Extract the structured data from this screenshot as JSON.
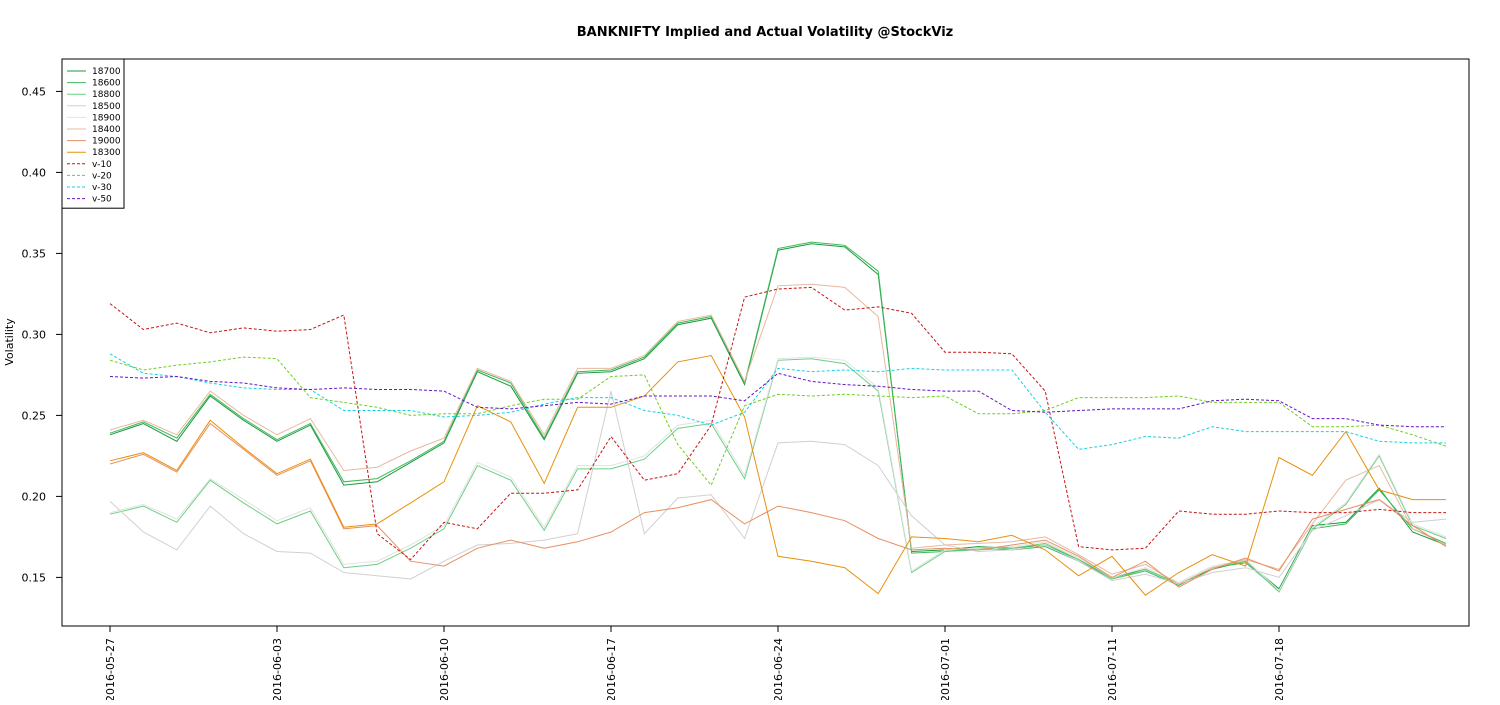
{
  "chart_data": {
    "type": "line",
    "title": "BANKNIFTY Implied and Actual Volatility @StockViz",
    "xlabel": "",
    "ylabel": "Volatility",
    "ylim": [
      0.12,
      0.47
    ],
    "yticks": [
      0.15,
      0.2,
      0.25,
      0.3,
      0.35,
      0.4,
      0.45
    ],
    "ytick_labels": [
      "0.15",
      "0.20",
      "0.25",
      "0.30",
      "0.35",
      "0.40",
      "0.45"
    ],
    "xtick_positions": [
      0,
      5,
      10,
      15,
      20,
      25,
      30,
      35
    ],
    "xtick_labels": [
      "2016-05-27",
      "2016-06-03",
      "2016-06-10",
      "2016-06-17",
      "2016-06-24",
      "2016-07-01",
      "2016-07-11",
      "2016-07-18"
    ],
    "grid": false,
    "legend_position": "top-left",
    "n_points": 41,
    "series": [
      {
        "name": "18700",
        "color": "#1a9a3c",
        "dash": "solid",
        "values": [
          0.238,
          0.245,
          0.234,
          0.262,
          0.247,
          0.234,
          0.244,
          0.207,
          0.209,
          0.221,
          0.233,
          0.277,
          0.268,
          0.235,
          0.276,
          0.277,
          0.285,
          0.306,
          0.31,
          0.269,
          0.352,
          0.356,
          0.354,
          0.337,
          0.166,
          0.167,
          0.169,
          0.168,
          0.17,
          0.161,
          0.15,
          0.155,
          0.146,
          0.155,
          0.16,
          0.143,
          0.182,
          0.184,
          0.205,
          0.178,
          0.17
        ]
      },
      {
        "name": "18600",
        "color": "#3cb85a",
        "dash": "solid",
        "values": [
          0.239,
          0.246,
          0.236,
          0.263,
          0.248,
          0.235,
          0.245,
          0.209,
          0.211,
          0.222,
          0.234,
          0.278,
          0.27,
          0.236,
          0.277,
          0.278,
          0.286,
          0.307,
          0.311,
          0.27,
          0.353,
          0.357,
          0.355,
          0.339,
          0.165,
          0.166,
          0.168,
          0.167,
          0.169,
          0.16,
          0.149,
          0.154,
          0.145,
          0.156,
          0.159,
          0.142,
          0.18,
          0.183,
          0.204,
          0.18,
          0.171
        ]
      },
      {
        "name": "18800",
        "color": "#6ccf84",
        "dash": "solid",
        "values": [
          0.189,
          0.194,
          0.184,
          0.21,
          0.196,
          0.183,
          0.191,
          0.156,
          0.158,
          0.168,
          0.18,
          0.219,
          0.21,
          0.179,
          0.217,
          0.217,
          0.223,
          0.242,
          0.245,
          0.211,
          0.284,
          0.285,
          0.282,
          0.265,
          0.153,
          0.166,
          0.167,
          0.168,
          0.171,
          0.161,
          0.149,
          0.155,
          0.146,
          0.156,
          0.16,
          0.141,
          0.18,
          0.195,
          0.225,
          0.182,
          0.174
        ]
      },
      {
        "name": "18500",
        "color": "#d0d0d0",
        "dash": "solid",
        "values": [
          0.197,
          0.178,
          0.167,
          0.194,
          0.177,
          0.166,
          0.165,
          0.153,
          0.151,
          0.149,
          0.16,
          0.17,
          0.171,
          0.173,
          0.177,
          0.265,
          0.177,
          0.199,
          0.201,
          0.174,
          0.233,
          0.234,
          0.232,
          0.219,
          0.188,
          0.17,
          0.166,
          0.167,
          0.17,
          0.16,
          0.148,
          0.152,
          0.146,
          0.153,
          0.156,
          0.15,
          0.179,
          0.188,
          0.198,
          0.184,
          0.186
        ]
      },
      {
        "name": "18900",
        "color": "#e2e2e2",
        "dash": "solid",
        "values": [
          0.19,
          0.195,
          0.186,
          0.211,
          0.198,
          0.185,
          0.193,
          0.158,
          0.16,
          0.17,
          0.182,
          0.221,
          0.212,
          0.181,
          0.219,
          0.219,
          0.225,
          0.244,
          0.247,
          0.213,
          0.285,
          0.286,
          0.284,
          0.267,
          0.154,
          0.167,
          0.168,
          0.169,
          0.172,
          0.162,
          0.15,
          0.156,
          0.147,
          0.157,
          0.161,
          0.142,
          0.181,
          0.196,
          0.226,
          0.183,
          0.175
        ]
      },
      {
        "name": "18400",
        "color": "#e8b8a0",
        "dash": "solid",
        "values": [
          0.241,
          0.247,
          0.238,
          0.265,
          0.25,
          0.238,
          0.248,
          0.216,
          0.218,
          0.228,
          0.236,
          0.279,
          0.271,
          0.238,
          0.279,
          0.279,
          0.287,
          0.308,
          0.312,
          0.271,
          0.33,
          0.331,
          0.329,
          0.311,
          0.168,
          0.17,
          0.171,
          0.172,
          0.175,
          0.164,
          0.152,
          0.158,
          0.146,
          0.156,
          0.161,
          0.155,
          0.183,
          0.21,
          0.219,
          0.18,
          0.17
        ]
      },
      {
        "name": "19000",
        "color": "#e89060",
        "dash": "solid",
        "values": [
          0.22,
          0.226,
          0.215,
          0.245,
          0.229,
          0.213,
          0.222,
          0.18,
          0.182,
          0.16,
          0.157,
          0.168,
          0.173,
          0.168,
          0.172,
          0.178,
          0.19,
          0.193,
          0.198,
          0.183,
          0.194,
          0.19,
          0.185,
          0.174,
          0.167,
          0.168,
          0.167,
          0.17,
          0.173,
          0.163,
          0.15,
          0.16,
          0.144,
          0.155,
          0.162,
          0.154,
          0.186,
          0.192,
          0.198,
          0.182,
          0.169
        ]
      },
      {
        "name": "18300",
        "color": "#e8900c",
        "dash": "solid",
        "values": [
          0.222,
          0.227,
          0.216,
          0.247,
          0.23,
          0.214,
          0.223,
          0.181,
          0.183,
          0.196,
          0.209,
          0.256,
          0.246,
          0.208,
          0.255,
          0.255,
          0.262,
          0.283,
          0.287,
          0.249,
          0.163,
          0.16,
          0.156,
          0.14,
          0.175,
          0.174,
          0.172,
          0.176,
          0.167,
          0.151,
          0.163,
          0.139,
          0.153,
          0.164,
          0.157,
          0.224,
          0.213,
          0.24,
          0.204,
          0.198,
          0.198
        ]
      },
      {
        "name": "v-10",
        "color": "#c81414",
        "dash": "dashed",
        "values": [
          0.319,
          0.303,
          0.307,
          0.301,
          0.304,
          0.302,
          0.303,
          0.312,
          0.177,
          0.161,
          0.184,
          0.18,
          0.202,
          0.202,
          0.204,
          0.237,
          0.21,
          0.214,
          0.244,
          0.323,
          0.328,
          0.329,
          0.315,
          0.317,
          0.313,
          0.289,
          0.289,
          0.288,
          0.265,
          0.169,
          0.167,
          0.168,
          0.191,
          0.189,
          0.189,
          0.191,
          0.19,
          0.19,
          0.192,
          0.19,
          0.19
        ]
      },
      {
        "name": "v-20",
        "color": "#6ed01e",
        "dash": "dashed",
        "values": [
          0.284,
          0.278,
          0.281,
          0.283,
          0.286,
          0.285,
          0.261,
          0.258,
          0.255,
          0.25,
          0.251,
          0.251,
          0.256,
          0.26,
          0.26,
          0.274,
          0.275,
          0.232,
          0.207,
          0.256,
          0.263,
          0.262,
          0.263,
          0.262,
          0.261,
          0.262,
          0.251,
          0.251,
          0.253,
          0.261,
          0.261,
          0.261,
          0.262,
          0.258,
          0.258,
          0.258,
          0.243,
          0.243,
          0.244,
          0.238,
          0.231
        ]
      },
      {
        "name": "v-30",
        "color": "#14d2e6",
        "dash": "dashed",
        "values": [
          0.288,
          0.276,
          0.274,
          0.27,
          0.267,
          0.266,
          0.266,
          0.253,
          0.253,
          0.253,
          0.249,
          0.25,
          0.252,
          0.257,
          0.261,
          0.261,
          0.253,
          0.25,
          0.244,
          0.252,
          0.279,
          0.277,
          0.278,
          0.277,
          0.279,
          0.278,
          0.278,
          0.278,
          0.252,
          0.229,
          0.232,
          0.237,
          0.236,
          0.243,
          0.24,
          0.24,
          0.24,
          0.24,
          0.234,
          0.233,
          0.233
        ]
      },
      {
        "name": "v-50",
        "color": "#6414c8",
        "dash": "dashed",
        "values": [
          0.274,
          0.273,
          0.274,
          0.271,
          0.27,
          0.267,
          0.266,
          0.267,
          0.266,
          0.266,
          0.265,
          0.255,
          0.254,
          0.256,
          0.258,
          0.257,
          0.262,
          0.262,
          0.262,
          0.259,
          0.276,
          0.271,
          0.269,
          0.268,
          0.266,
          0.265,
          0.265,
          0.253,
          0.252,
          0.253,
          0.254,
          0.254,
          0.254,
          0.259,
          0.26,
          0.259,
          0.248,
          0.248,
          0.244,
          0.243,
          0.243
        ]
      }
    ]
  }
}
